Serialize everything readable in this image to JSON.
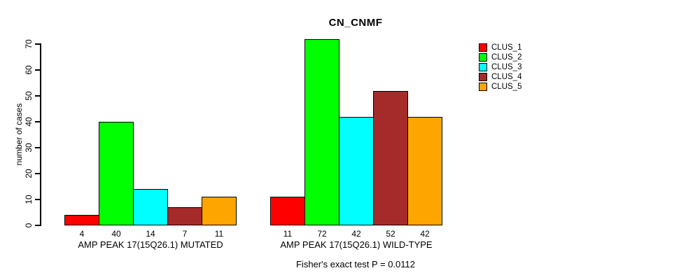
{
  "chart_data": {
    "type": "bar",
    "title": "CN_CNMF",
    "ylabel": "number of cases",
    "xlabel": "",
    "ylim": [
      0,
      70
    ],
    "yticks": [
      0,
      10,
      20,
      30,
      40,
      50,
      60,
      70
    ],
    "grid": false,
    "legend_position": "right-outside",
    "categories": [
      "AMP PEAK 17(15Q26.1) MUTATED",
      "AMP PEAK 17(15Q26.1) WILD-TYPE"
    ],
    "series": [
      {
        "name": "CLUS_1",
        "color": "#FF0000",
        "values": [
          4,
          11
        ]
      },
      {
        "name": "CLUS_2",
        "color": "#00FF00",
        "values": [
          40,
          72
        ]
      },
      {
        "name": "CLUS_3",
        "color": "#00FFFF",
        "values": [
          14,
          42
        ]
      },
      {
        "name": "CLUS_4",
        "color": "#A52A2A",
        "values": [
          7,
          52
        ]
      },
      {
        "name": "CLUS_5",
        "color": "#FFA500",
        "values": [
          11,
          42
        ]
      }
    ],
    "bar_value_labels": {
      "AMP PEAK 17(15Q26.1) MUTATED": [
        4,
        40,
        14,
        7,
        11
      ],
      "AMP PEAK 17(15Q26.1) WILD-TYPE": [
        11,
        72,
        42,
        52,
        42
      ]
    },
    "caption": "Fisher's exact test P = 0.0112"
  }
}
